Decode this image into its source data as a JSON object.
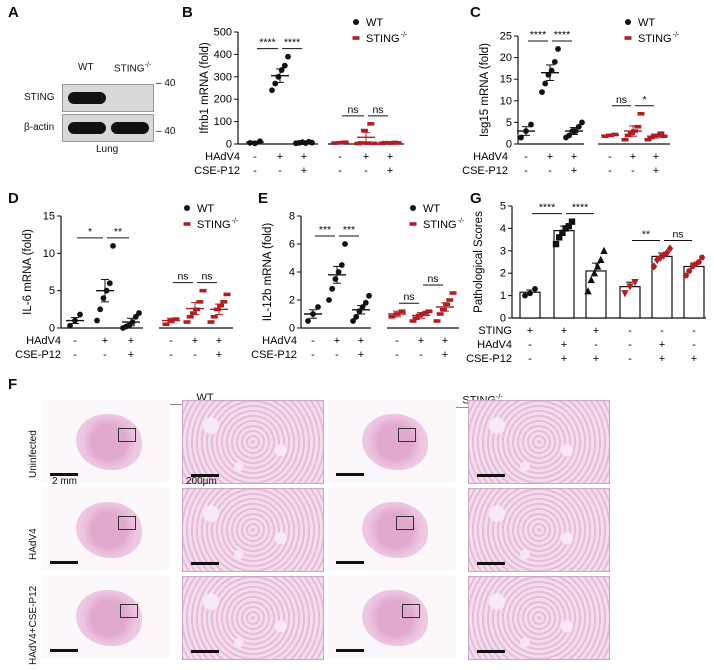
{
  "panels": {
    "A": {
      "letter": "A",
      "col_wt": "WT",
      "col_ko": "STING",
      "ko_sup": "-/-",
      "row1": "STING",
      "row2": "β-actin",
      "mw1": "40",
      "mw2": "40",
      "tissue": "Lung"
    },
    "B": {
      "letter": "B"
    },
    "C": {
      "letter": "C"
    },
    "D": {
      "letter": "D"
    },
    "E": {
      "letter": "E"
    },
    "G": {
      "letter": "G"
    },
    "F": {
      "letter": "F",
      "group_wt": "WT",
      "group_ko": "STING",
      "ko_sup": "-/-",
      "rows": [
        "Uninfected",
        "HAdV4",
        "HAdV4+CSE-P12"
      ],
      "scale_overview": "2 mm",
      "scale_zoom": "200μm"
    }
  },
  "legend": {
    "wt": "WT",
    "ko": "STING",
    "ko_sup": "-/-"
  },
  "colors": {
    "wt": "#111111",
    "ko": "#b01e24"
  },
  "chart_data": [
    {
      "id": "B",
      "type": "scatter-bar",
      "ylabel": "Ifnb1 mRNA (fold)",
      "ylim": [
        0,
        500
      ],
      "yticks": [
        0,
        100,
        200,
        300,
        400,
        500
      ],
      "rows": [
        {
          "label": "HAdV4",
          "values": [
            "-",
            "+",
            "+",
            "-",
            "+",
            "+"
          ]
        },
        {
          "label": "CSE-P12",
          "values": [
            "-",
            "-",
            "+",
            "-",
            "-",
            "+"
          ]
        }
      ],
      "groups": [
        {
          "series": "WT",
          "mean": 8,
          "sem": 4,
          "points": [
            5,
            3,
            12
          ]
        },
        {
          "series": "WT",
          "mean": 305,
          "sem": 30,
          "points": [
            240,
            270,
            300,
            330,
            350,
            390
          ]
        },
        {
          "series": "WT",
          "mean": 6,
          "sem": 3,
          "points": [
            3,
            5,
            8,
            4,
            10,
            6
          ]
        },
        {
          "series": "STING-/-",
          "mean": 6,
          "sem": 3,
          "points": [
            4,
            6,
            8
          ]
        },
        {
          "series": "STING-/-",
          "mean": 30,
          "sem": 22,
          "points": [
            2,
            5,
            60,
            4,
            90,
            3
          ]
        },
        {
          "series": "STING-/-",
          "mean": 5,
          "sem": 2,
          "points": [
            3,
            6,
            5,
            4,
            7,
            5
          ]
        }
      ],
      "brackets": [
        {
          "from": 0,
          "to": 1,
          "label": "****"
        },
        {
          "from": 1,
          "to": 2,
          "label": "****"
        },
        {
          "from": 3,
          "to": 4,
          "label": "ns"
        },
        {
          "from": 4,
          "to": 5,
          "label": "ns"
        }
      ]
    },
    {
      "id": "C",
      "type": "scatter-bar",
      "ylabel": "Isg15 mRNA (fold)",
      "ylim": [
        0,
        25
      ],
      "yticks": [
        0,
        5,
        10,
        15,
        20,
        25
      ],
      "rows": [
        {
          "label": "HAdV4",
          "values": [
            "-",
            "+",
            "+",
            "-",
            "+",
            "+"
          ]
        },
        {
          "label": "CSE-P12",
          "values": [
            "-",
            "-",
            "+",
            "-",
            "-",
            "+"
          ]
        }
      ],
      "groups": [
        {
          "series": "WT",
          "mean": 3,
          "sem": 1,
          "points": [
            1.5,
            3,
            4.5
          ]
        },
        {
          "series": "WT",
          "mean": 16.5,
          "sem": 1.8,
          "points": [
            12,
            14,
            16,
            17,
            19,
            22
          ]
        },
        {
          "series": "WT",
          "mean": 3,
          "sem": 0.8,
          "points": [
            1.5,
            2,
            3,
            3,
            4,
            5
          ]
        },
        {
          "series": "STING-/-",
          "mean": 2,
          "sem": 0.3,
          "points": [
            1.8,
            2,
            2.2
          ]
        },
        {
          "series": "STING-/-",
          "mean": 3,
          "sem": 1.2,
          "points": [
            1,
            2,
            2.5,
            3,
            4,
            7
          ]
        },
        {
          "series": "STING-/-",
          "mean": 1.8,
          "sem": 0.4,
          "points": [
            1,
            1.5,
            2,
            2,
            2.5,
            1.8
          ]
        }
      ],
      "brackets": [
        {
          "from": 0,
          "to": 1,
          "label": "****"
        },
        {
          "from": 1,
          "to": 2,
          "label": "****"
        },
        {
          "from": 3,
          "to": 4,
          "label": "ns"
        },
        {
          "from": 4,
          "to": 5,
          "label": "*"
        }
      ]
    },
    {
      "id": "D",
      "type": "scatter-bar",
      "ylabel": "IL-6 mRNA (fold)",
      "ylim": [
        0,
        15
      ],
      "yticks": [
        0,
        5,
        10,
        15
      ],
      "rows": [
        {
          "label": "HAdV4",
          "values": [
            "-",
            "+",
            "+",
            "-",
            "+",
            "+"
          ]
        },
        {
          "label": "CSE-P12",
          "values": [
            "-",
            "-",
            "+",
            "-",
            "-",
            "+"
          ]
        }
      ],
      "groups": [
        {
          "series": "WT",
          "mean": 1,
          "sem": 0.4,
          "points": [
            0.3,
            1,
            1.8
          ]
        },
        {
          "series": "WT",
          "mean": 5,
          "sem": 1.5,
          "points": [
            1,
            2.5,
            4,
            5,
            6,
            11
          ]
        },
        {
          "series": "WT",
          "mean": 0.8,
          "sem": 0.5,
          "points": [
            0,
            0.2,
            0.4,
            0.8,
            1.5,
            2
          ]
        },
        {
          "series": "STING-/-",
          "mean": 1,
          "sem": 0.3,
          "points": [
            0.5,
            1,
            1.2
          ]
        },
        {
          "series": "STING-/-",
          "mean": 2.6,
          "sem": 0.8,
          "points": [
            0.8,
            1.5,
            2,
            2.5,
            3.5,
            5
          ]
        },
        {
          "series": "STING-/-",
          "mean": 2.5,
          "sem": 0.7,
          "points": [
            0.8,
            1.5,
            2.5,
            3,
            3.5,
            4.5
          ]
        }
      ],
      "brackets": [
        {
          "from": 0,
          "to": 1,
          "label": "*"
        },
        {
          "from": 1,
          "to": 2,
          "label": "**"
        },
        {
          "from": 3,
          "to": 4,
          "label": "ns"
        },
        {
          "from": 4,
          "to": 5,
          "label": "ns"
        }
      ]
    },
    {
      "id": "E",
      "type": "scatter-bar",
      "ylabel": "IL-12b mRNA (fold)",
      "ylim": [
        0,
        8
      ],
      "yticks": [
        0,
        2,
        4,
        6,
        8
      ],
      "rows": [
        {
          "label": "HAdV4",
          "values": [
            "-",
            "+",
            "+",
            "-",
            "+",
            "+"
          ]
        },
        {
          "label": "CSE-P12",
          "values": [
            "-",
            "-",
            "+",
            "-",
            "-",
            "+"
          ]
        }
      ],
      "groups": [
        {
          "series": "WT",
          "mean": 1,
          "sem": 0.3,
          "points": [
            0.5,
            1,
            1.5
          ]
        },
        {
          "series": "WT",
          "mean": 3.8,
          "sem": 0.6,
          "points": [
            2,
            2.8,
            3.5,
            4,
            4.5,
            6
          ]
        },
        {
          "series": "WT",
          "mean": 1.3,
          "sem": 0.3,
          "points": [
            0.5,
            0.8,
            1.2,
            1.5,
            1.8,
            2.3
          ]
        },
        {
          "series": "STING-/-",
          "mean": 1,
          "sem": 0.2,
          "points": [
            0.8,
            1,
            1.2
          ]
        },
        {
          "series": "STING-/-",
          "mean": 0.9,
          "sem": 0.2,
          "points": [
            0.5,
            0.7,
            0.9,
            1,
            1.1,
            1.2
          ]
        },
        {
          "series": "STING-/-",
          "mean": 1.5,
          "sem": 0.3,
          "points": [
            0.5,
            1,
            1.3,
            1.7,
            2,
            2.5
          ]
        }
      ],
      "brackets": [
        {
          "from": 0,
          "to": 1,
          "label": "***"
        },
        {
          "from": 1,
          "to": 2,
          "label": "***"
        },
        {
          "from": 3,
          "to": 4,
          "label": "ns"
        },
        {
          "from": 4,
          "to": 5,
          "label": "ns"
        }
      ]
    },
    {
      "id": "G",
      "type": "bar",
      "ylabel": "Pathological Scores",
      "ylim": [
        0,
        5
      ],
      "yticks": [
        0,
        1,
        2,
        3,
        4,
        5
      ],
      "rows": [
        {
          "label": "STING",
          "values": [
            "+",
            "+",
            "+",
            "-",
            "-",
            "-"
          ]
        },
        {
          "label": "HAdV4",
          "values": [
            "-",
            "+",
            "-",
            "-",
            "+",
            "-"
          ]
        },
        {
          "label": "CSE-P12",
          "values": [
            "-",
            "+",
            "+",
            "-",
            "+",
            "+"
          ]
        }
      ],
      "groups": [
        {
          "series": "WT",
          "mean": 1.15,
          "sem": 0.1,
          "points": [
            1,
            1.1,
            1.3
          ],
          "marker": "circle"
        },
        {
          "series": "WT",
          "mean": 3.9,
          "sem": 0.2,
          "points": [
            3.3,
            3.6,
            3.8,
            4,
            4.1,
            4.3
          ],
          "marker": "square"
        },
        {
          "series": "WT",
          "mean": 2.1,
          "sem": 0.35,
          "points": [
            1.2,
            1.7,
            2,
            2.3,
            2.6,
            3
          ],
          "marker": "triangle"
        },
        {
          "series": "STING-/-",
          "mean": 1.4,
          "sem": 0.2,
          "points": [
            1.1,
            1.4,
            1.6
          ],
          "marker": "triangle-down"
        },
        {
          "series": "STING-/-",
          "mean": 2.75,
          "sem": 0.15,
          "points": [
            2.3,
            2.6,
            2.7,
            2.8,
            2.9,
            3.1
          ],
          "marker": "diamond"
        },
        {
          "series": "STING-/-",
          "mean": 2.3,
          "sem": 0.15,
          "points": [
            1.9,
            2.1,
            2.3,
            2.4,
            2.5,
            2.7
          ],
          "marker": "hexagon"
        }
      ],
      "brackets": [
        {
          "from": 0,
          "to": 1,
          "label": "****"
        },
        {
          "from": 1,
          "to": 2,
          "label": "****"
        },
        {
          "from": 3,
          "to": 4,
          "label": "**"
        },
        {
          "from": 4,
          "to": 5,
          "label": "ns"
        }
      ]
    }
  ]
}
